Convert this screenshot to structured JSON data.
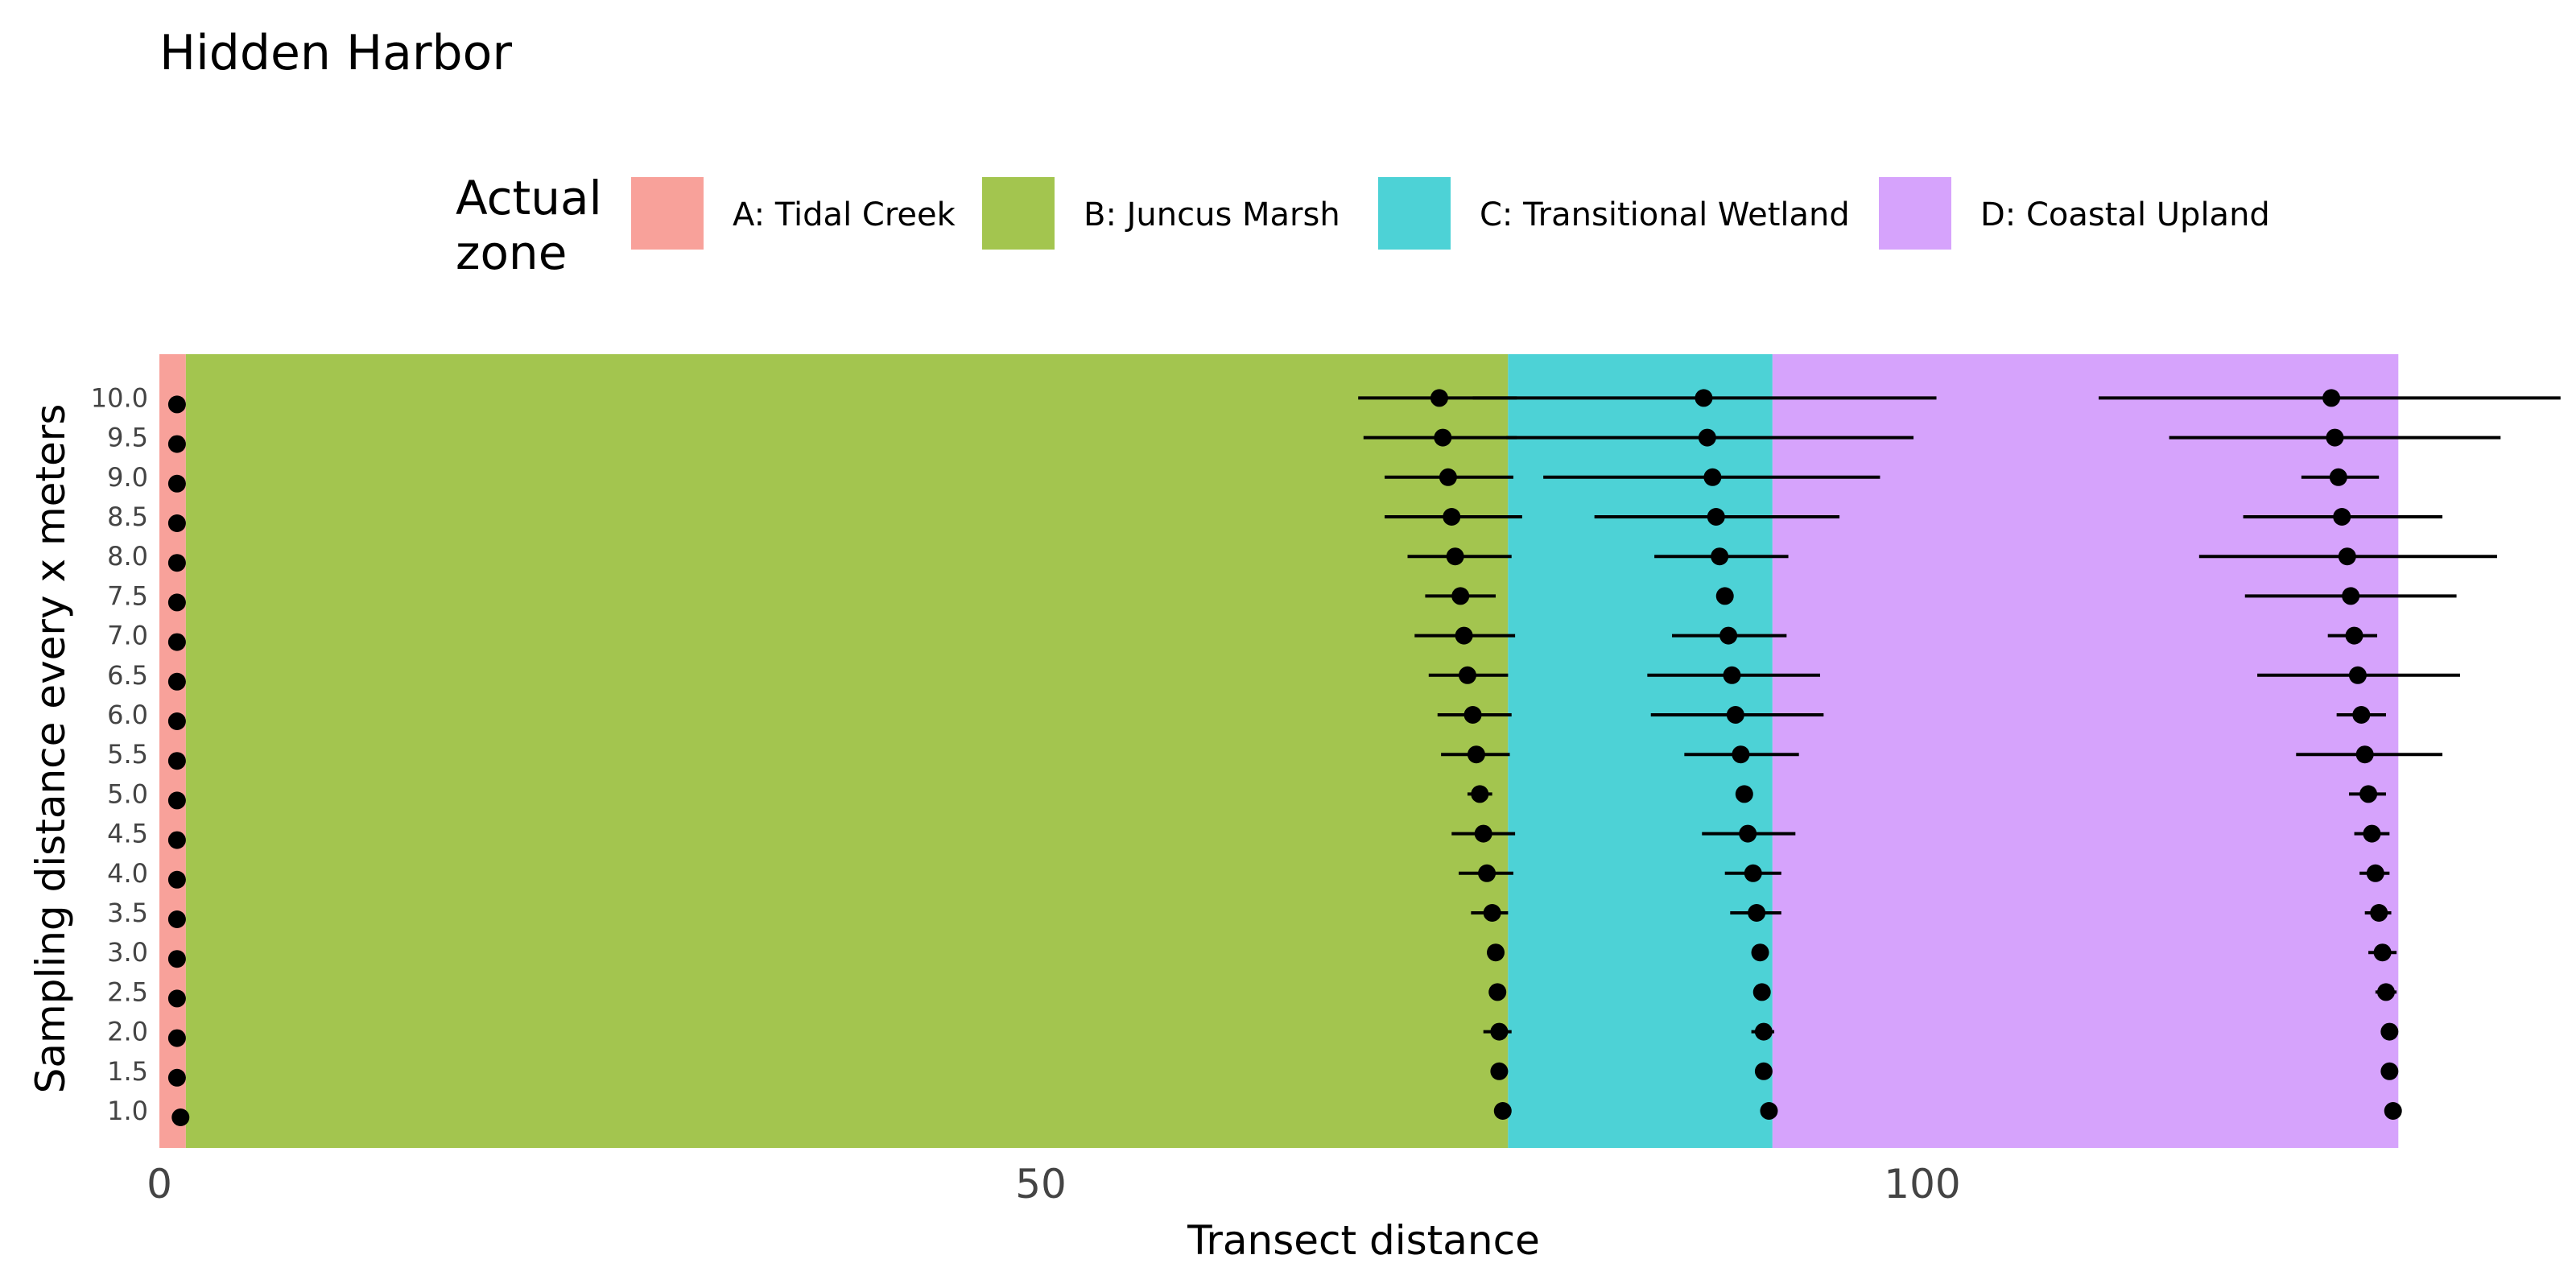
{
  "chart_data": {
    "type": "scatter",
    "title": "Hidden Harbor",
    "xlabel": "Transect distance",
    "ylabel": "Sampling distance every x meters",
    "xlim": [
      0,
      136
    ],
    "x_ticks": [
      0,
      50,
      100
    ],
    "y_categories": [
      "1.0",
      "1.5",
      "2.0",
      "2.5",
      "3.0",
      "3.5",
      "4.0",
      "4.5",
      "5.0",
      "5.5",
      "6.0",
      "6.5",
      "7.0",
      "7.5",
      "8.0",
      "8.5",
      "9.0",
      "9.5",
      "10.0"
    ],
    "legend": {
      "title_lines": [
        "Actual",
        "zone"
      ],
      "placement": "top",
      "items": [
        {
          "label": "A: Tidal Creek",
          "color": "#F8A19A"
        },
        {
          "label": "B: Juncus Marsh",
          "color": "#A3C54F"
        },
        {
          "label": "C: Transitional Wetland",
          "color": "#4DD2D6"
        },
        {
          "label": "D: Coastal Upland",
          "color": "#D6A3FC"
        }
      ]
    },
    "zones": [
      {
        "label": "A: Tidal Creek",
        "start": 0,
        "end": 1.5
      },
      {
        "label": "B: Juncus Marsh",
        "start": 1.5,
        "end": 76.5
      },
      {
        "label": "C: Transitional Wetland",
        "start": 76.5,
        "end": 91.5
      },
      {
        "label": "D: Coastal Upland",
        "start": 91.5,
        "end": 127
      }
    ],
    "grid": false,
    "series": [
      {
        "values": [
          {
            "y": "10.0",
            "x": 1.0
          },
          {
            "y": "9.5",
            "x": 1.0
          },
          {
            "y": "9.0",
            "x": 1.0
          },
          {
            "y": "8.5",
            "x": 1.0
          },
          {
            "y": "8.0",
            "x": 1.0
          },
          {
            "y": "7.5",
            "x": 1.0
          },
          {
            "y": "7.0",
            "x": 1.0
          },
          {
            "y": "6.5",
            "x": 1.0
          },
          {
            "y": "6.0",
            "x": 1.0
          },
          {
            "y": "5.5",
            "x": 1.0
          },
          {
            "y": "5.0",
            "x": 1.0
          },
          {
            "y": "4.5",
            "x": 1.0
          },
          {
            "y": "4.0",
            "x": 1.0
          },
          {
            "y": "3.5",
            "x": 1.0
          },
          {
            "y": "3.0",
            "x": 1.0
          },
          {
            "y": "2.5",
            "x": 1.0
          },
          {
            "y": "2.0",
            "x": 1.0
          },
          {
            "y": "1.5",
            "x": 1.0
          },
          {
            "y": "1.0",
            "x": 1.2
          }
        ]
      },
      {
        "values": [
          {
            "y": "10.0",
            "x": 72.6,
            "xmin": 68.0,
            "xmax": 77.0
          },
          {
            "y": "9.5",
            "x": 72.8,
            "xmin": 68.3,
            "xmax": 77.0
          },
          {
            "y": "9.0",
            "x": 73.1,
            "xmin": 69.5,
            "xmax": 76.8
          },
          {
            "y": "8.5",
            "x": 73.3,
            "xmin": 69.5,
            "xmax": 77.3
          },
          {
            "y": "8.0",
            "x": 73.5,
            "xmin": 70.8,
            "xmax": 76.7
          },
          {
            "y": "7.5",
            "x": 73.8,
            "xmin": 71.8,
            "xmax": 75.8
          },
          {
            "y": "7.0",
            "x": 74.0,
            "xmin": 71.2,
            "xmax": 76.9
          },
          {
            "y": "6.5",
            "x": 74.2,
            "xmin": 72.0,
            "xmax": 76.5
          },
          {
            "y": "6.0",
            "x": 74.5,
            "xmin": 72.5,
            "xmax": 76.7
          },
          {
            "y": "5.5",
            "x": 74.7,
            "xmin": 72.7,
            "xmax": 76.6
          },
          {
            "y": "5.0",
            "x": 74.9,
            "xmin": 74.2,
            "xmax": 75.6
          },
          {
            "y": "4.5",
            "x": 75.1,
            "xmin": 73.3,
            "xmax": 76.9
          },
          {
            "y": "4.0",
            "x": 75.3,
            "xmin": 73.7,
            "xmax": 76.8
          },
          {
            "y": "3.5",
            "x": 75.6,
            "xmin": 74.4,
            "xmax": 76.5
          },
          {
            "y": "3.0",
            "x": 75.8
          },
          {
            "y": "2.5",
            "x": 75.9
          },
          {
            "y": "2.0",
            "x": 76.0,
            "xmin": 75.1,
            "xmax": 76.7
          },
          {
            "y": "1.5",
            "x": 76.0
          },
          {
            "y": "1.0",
            "x": 76.2
          }
        ]
      },
      {
        "values": [
          {
            "y": "10.0",
            "x": 87.6,
            "xmin": 74.5,
            "xmax": 100.8
          },
          {
            "y": "9.5",
            "x": 87.8,
            "xmin": 76.4,
            "xmax": 99.5
          },
          {
            "y": "9.0",
            "x": 88.1,
            "xmin": 78.5,
            "xmax": 97.6
          },
          {
            "y": "8.5",
            "x": 88.3,
            "xmin": 81.4,
            "xmax": 95.3
          },
          {
            "y": "8.0",
            "x": 88.5,
            "xmin": 84.8,
            "xmax": 92.4
          },
          {
            "y": "7.5",
            "x": 88.8
          },
          {
            "y": "7.0",
            "x": 89.0,
            "xmin": 85.8,
            "xmax": 92.3
          },
          {
            "y": "6.5",
            "x": 89.2,
            "xmin": 84.4,
            "xmax": 94.2
          },
          {
            "y": "6.0",
            "x": 89.4,
            "xmin": 84.6,
            "xmax": 94.4
          },
          {
            "y": "5.5",
            "x": 89.7,
            "xmin": 86.5,
            "xmax": 93.0
          },
          {
            "y": "5.0",
            "x": 89.9
          },
          {
            "y": "4.5",
            "x": 90.1,
            "xmin": 87.5,
            "xmax": 92.8
          },
          {
            "y": "4.0",
            "x": 90.4,
            "xmin": 88.8,
            "xmax": 92.0
          },
          {
            "y": "3.5",
            "x": 90.6,
            "xmin": 89.1,
            "xmax": 92.0
          },
          {
            "y": "3.0",
            "x": 90.8
          },
          {
            "y": "2.5",
            "x": 90.9
          },
          {
            "y": "2.0",
            "x": 91.0,
            "xmin": 90.3,
            "xmax": 91.6
          },
          {
            "y": "1.5",
            "x": 91.0
          },
          {
            "y": "1.0",
            "x": 91.3
          }
        ]
      },
      {
        "values": [
          {
            "y": "10.0",
            "x": 123.2,
            "xmin": 110.0,
            "xmax": 136.2
          },
          {
            "y": "9.5",
            "x": 123.4,
            "xmin": 114.0,
            "xmax": 132.8
          },
          {
            "y": "9.0",
            "x": 123.6,
            "xmin": 121.5,
            "xmax": 125.9
          },
          {
            "y": "8.5",
            "x": 123.8,
            "xmin": 118.2,
            "xmax": 129.5
          },
          {
            "y": "8.0",
            "x": 124.1,
            "xmin": 115.7,
            "xmax": 132.6
          },
          {
            "y": "7.5",
            "x": 124.3,
            "xmin": 118.3,
            "xmax": 130.3
          },
          {
            "y": "7.0",
            "x": 124.5,
            "xmin": 123.0,
            "xmax": 125.8
          },
          {
            "y": "6.5",
            "x": 124.7,
            "xmin": 119.0,
            "xmax": 130.5
          },
          {
            "y": "6.0",
            "x": 124.9,
            "xmin": 123.5,
            "xmax": 126.3
          },
          {
            "y": "5.5",
            "x": 125.1,
            "xmin": 121.2,
            "xmax": 129.5
          },
          {
            "y": "5.0",
            "x": 125.3,
            "xmin": 124.2,
            "xmax": 126.3
          },
          {
            "y": "4.5",
            "x": 125.5,
            "xmin": 124.5,
            "xmax": 126.5
          },
          {
            "y": "4.0",
            "x": 125.7,
            "xmin": 124.8,
            "xmax": 126.5
          },
          {
            "y": "3.5",
            "x": 125.9,
            "xmin": 125.1,
            "xmax": 126.6
          },
          {
            "y": "3.0",
            "x": 126.1,
            "xmin": 125.3,
            "xmax": 126.9
          },
          {
            "y": "2.5",
            "x": 126.3,
            "xmin": 125.7,
            "xmax": 126.9
          },
          {
            "y": "2.0",
            "x": 126.5
          },
          {
            "y": "1.5",
            "x": 126.5
          },
          {
            "y": "1.0",
            "x": 126.7
          }
        ]
      }
    ]
  }
}
